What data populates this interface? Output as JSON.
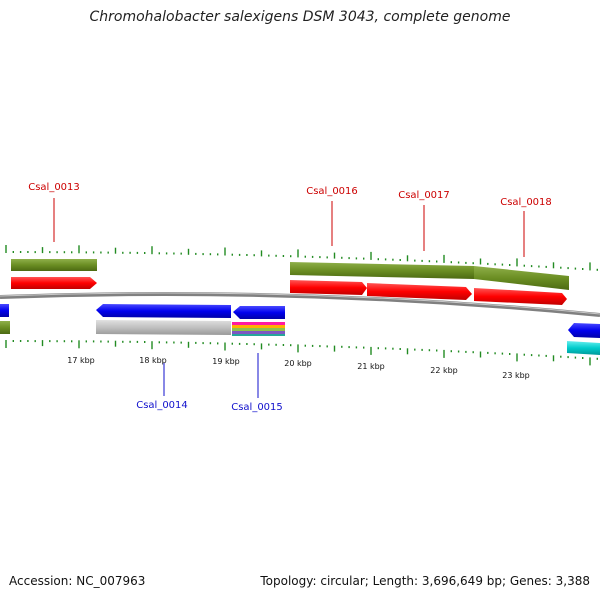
{
  "title": "Chromohalobacter salexigens DSM 3043, complete genome",
  "footer": {
    "accession": "Accession: NC_007963",
    "summary": "Topology: circular; Length: 3,696,649 bp; Genes: 3,388"
  },
  "colors": {
    "olive": "#6b8e23",
    "red": "#ff0000",
    "blue": "#0000ee",
    "gray": "#c0c0c0",
    "cyan": "#00cccc",
    "tick": "#228b22",
    "backbone": "#808080",
    "label_top": "#cc0000",
    "label_bottom": "#1010cc"
  },
  "kbp_labels": [
    "17 kbp",
    "18 kbp",
    "19 kbp",
    "20 kbp",
    "21 kbp",
    "22 kbp",
    "23 kbp"
  ],
  "gene_labels_top": [
    "Csal_0013",
    "Csal_0016",
    "Csal_0017",
    "Csal_0018"
  ],
  "gene_labels_bottom": [
    "Csal_0014",
    "Csal_0015"
  ]
}
